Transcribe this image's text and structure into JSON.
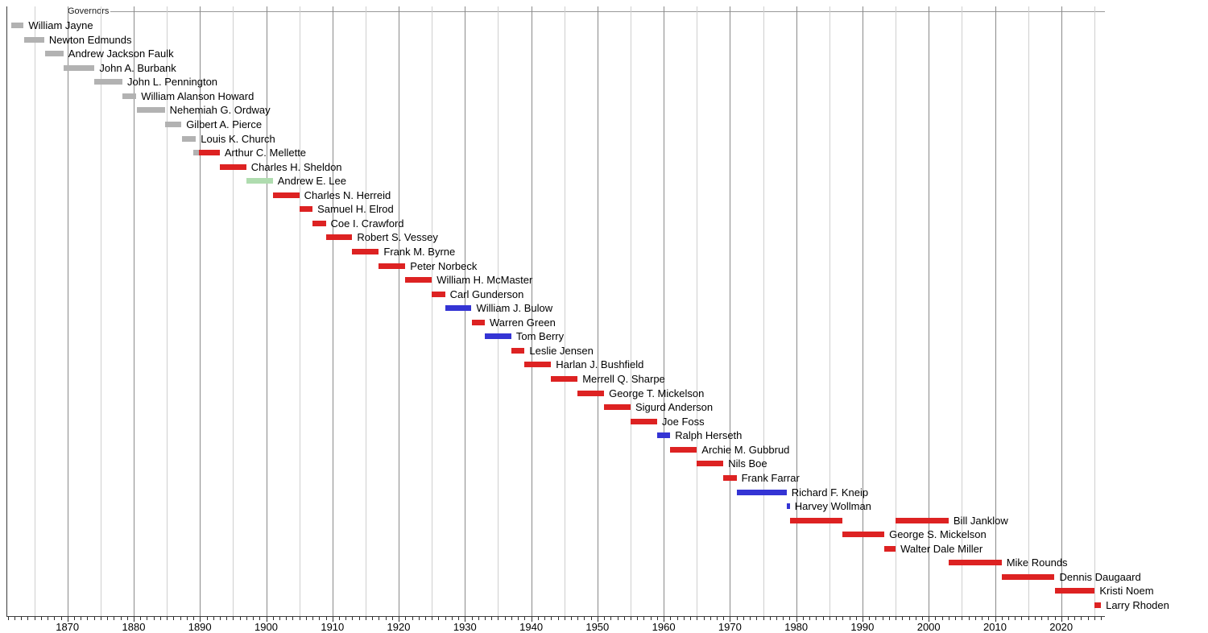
{
  "chart_data": {
    "type": "timeline",
    "section_label": "Governors",
    "axis": {
      "unit": "year",
      "domain_start": 1860.8,
      "domain_end": 2026.6,
      "minor_tick_interval": 1,
      "gridline_interval": 5,
      "label_interval": 10,
      "year_labels": [
        1870,
        1880,
        1890,
        1900,
        1910,
        1920,
        1930,
        1940,
        1950,
        1960,
        1970,
        1980,
        1990,
        2000,
        2010,
        2020
      ],
      "tick_first_year": 1861,
      "tick_last_year": 2026,
      "grid_on": true
    },
    "colors": {
      "territorial": "#b2b2b2",
      "republican": "#dd2222",
      "democratic": "#3434d4",
      "populist": "#afdcaf"
    },
    "governors": [
      {
        "name": "William Jayne",
        "party": "territorial",
        "terms": [
          {
            "start": 1861.5,
            "end": 1863.4
          }
        ]
      },
      {
        "name": "Newton Edmunds",
        "party": "territorial",
        "terms": [
          {
            "start": 1863.5,
            "end": 1866.5
          }
        ]
      },
      {
        "name": "Andrew Jackson Faulk",
        "party": "territorial",
        "terms": [
          {
            "start": 1866.6,
            "end": 1869.4
          }
        ]
      },
      {
        "name": "John A. Burbank",
        "party": "territorial",
        "terms": [
          {
            "start": 1869.4,
            "end": 1874.1
          }
        ]
      },
      {
        "name": "John L. Pennington",
        "party": "territorial",
        "terms": [
          {
            "start": 1874.1,
            "end": 1878.3
          }
        ]
      },
      {
        "name": "William Alanson Howard",
        "party": "territorial",
        "terms": [
          {
            "start": 1878.3,
            "end": 1880.4
          }
        ]
      },
      {
        "name": "Nehemiah G. Ordway",
        "party": "territorial",
        "terms": [
          {
            "start": 1880.5,
            "end": 1884.7
          }
        ]
      },
      {
        "name": "Gilbert A. Pierce",
        "party": "territorial",
        "terms": [
          {
            "start": 1884.7,
            "end": 1887.2
          }
        ]
      },
      {
        "name": "Louis K. Church",
        "party": "territorial",
        "terms": [
          {
            "start": 1887.3,
            "end": 1889.4
          }
        ]
      },
      {
        "name": "Arthur C. Mellette",
        "party": "republican",
        "terms": [
          {
            "start": 1889.05,
            "end": 1889.85,
            "party": "territorial"
          },
          {
            "start": 1889.85,
            "end": 1893.0
          }
        ]
      },
      {
        "name": "Charles H. Sheldon",
        "party": "republican",
        "terms": [
          {
            "start": 1893.0,
            "end": 1897.0
          }
        ]
      },
      {
        "name": "Andrew E. Lee",
        "party": "populist",
        "terms": [
          {
            "start": 1897.0,
            "end": 1901.0
          }
        ]
      },
      {
        "name": "Charles N. Herreid",
        "party": "republican",
        "terms": [
          {
            "start": 1901.0,
            "end": 1905.0
          }
        ]
      },
      {
        "name": "Samuel H. Elrod",
        "party": "republican",
        "terms": [
          {
            "start": 1905.0,
            "end": 1907.0
          }
        ]
      },
      {
        "name": "Coe I. Crawford",
        "party": "republican",
        "terms": [
          {
            "start": 1907.0,
            "end": 1909.0
          }
        ]
      },
      {
        "name": "Robert S. Vessey",
        "party": "republican",
        "terms": [
          {
            "start": 1909.0,
            "end": 1913.0
          }
        ]
      },
      {
        "name": "Frank M. Byrne",
        "party": "republican",
        "terms": [
          {
            "start": 1913.0,
            "end": 1917.0
          }
        ]
      },
      {
        "name": "Peter Norbeck",
        "party": "republican",
        "terms": [
          {
            "start": 1917.0,
            "end": 1921.0
          }
        ]
      },
      {
        "name": "William H. McMaster",
        "party": "republican",
        "terms": [
          {
            "start": 1921.0,
            "end": 1925.0
          }
        ]
      },
      {
        "name": "Carl Gunderson",
        "party": "republican",
        "terms": [
          {
            "start": 1925.0,
            "end": 1927.0
          }
        ]
      },
      {
        "name": "William J. Bulow",
        "party": "democratic",
        "terms": [
          {
            "start": 1927.0,
            "end": 1931.0
          }
        ]
      },
      {
        "name": "Warren Green",
        "party": "republican",
        "terms": [
          {
            "start": 1931.0,
            "end": 1933.0
          }
        ]
      },
      {
        "name": "Tom Berry",
        "party": "democratic",
        "terms": [
          {
            "start": 1933.0,
            "end": 1937.0
          }
        ]
      },
      {
        "name": "Leslie Jensen",
        "party": "republican",
        "terms": [
          {
            "start": 1937.0,
            "end": 1939.0
          }
        ]
      },
      {
        "name": "Harlan J. Bushfield",
        "party": "republican",
        "terms": [
          {
            "start": 1939.0,
            "end": 1943.0
          }
        ]
      },
      {
        "name": "Merrell Q. Sharpe",
        "party": "republican",
        "terms": [
          {
            "start": 1943.0,
            "end": 1947.0
          }
        ]
      },
      {
        "name": "George T. Mickelson",
        "party": "republican",
        "terms": [
          {
            "start": 1947.0,
            "end": 1951.0
          }
        ]
      },
      {
        "name": "Sigurd Anderson",
        "party": "republican",
        "terms": [
          {
            "start": 1951.0,
            "end": 1955.0
          }
        ]
      },
      {
        "name": "Joe Foss",
        "party": "republican",
        "terms": [
          {
            "start": 1955.0,
            "end": 1959.0
          }
        ]
      },
      {
        "name": "Ralph Herseth",
        "party": "democratic",
        "terms": [
          {
            "start": 1959.0,
            "end": 1961.0
          }
        ]
      },
      {
        "name": "Archie M. Gubbrud",
        "party": "republican",
        "terms": [
          {
            "start": 1961.0,
            "end": 1965.0
          }
        ]
      },
      {
        "name": "Nils Boe",
        "party": "republican",
        "terms": [
          {
            "start": 1965.0,
            "end": 1969.0
          }
        ]
      },
      {
        "name": "Frank Farrar",
        "party": "republican",
        "terms": [
          {
            "start": 1969.0,
            "end": 1971.0
          }
        ]
      },
      {
        "name": "Richard F. Kneip",
        "party": "democratic",
        "terms": [
          {
            "start": 1971.0,
            "end": 1978.55
          }
        ]
      },
      {
        "name": "Harvey Wollman",
        "party": "democratic",
        "terms": [
          {
            "start": 1978.55,
            "end": 1979.05
          }
        ]
      },
      {
        "name": "Bill Janklow",
        "party": "republican",
        "terms": [
          {
            "start": 1979.05,
            "end": 1987.0
          },
          {
            "start": 1995.0,
            "end": 2003.0
          }
        ]
      },
      {
        "name": "George S. Mickelson",
        "party": "republican",
        "terms": [
          {
            "start": 1987.0,
            "end": 1993.3
          }
        ]
      },
      {
        "name": "Walter Dale Miller",
        "party": "republican",
        "terms": [
          {
            "start": 1993.3,
            "end": 1995.0
          }
        ]
      },
      {
        "name": "Mike Rounds",
        "party": "republican",
        "terms": [
          {
            "start": 2003.0,
            "end": 2011.0
          }
        ]
      },
      {
        "name": "Dennis Daugaard",
        "party": "republican",
        "terms": [
          {
            "start": 2011.0,
            "end": 2019.0
          }
        ]
      },
      {
        "name": "Kristi Noem",
        "party": "republican",
        "terms": [
          {
            "start": 2019.0,
            "end": 2025.07
          }
        ]
      },
      {
        "name": "Larry Rhoden",
        "party": "republican",
        "terms": [
          {
            "start": 2025.07,
            "end": 2026.0
          }
        ]
      }
    ]
  }
}
